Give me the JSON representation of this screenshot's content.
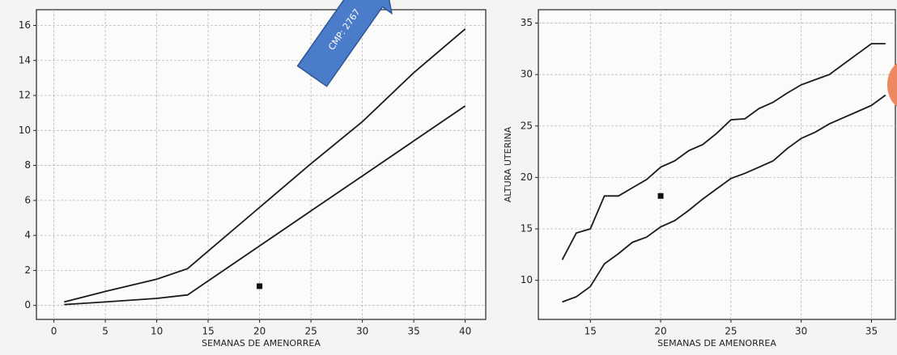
{
  "overlay_text": "CMP: 2767",
  "chart_data": [
    {
      "type": "line",
      "xlabel": "SEMANAS DE AMENORREA",
      "x": [
        1,
        5,
        10,
        13,
        20,
        25,
        30,
        35,
        40
      ],
      "series": [
        {
          "color": "#1a1a1a",
          "values": [
            0.2,
            0.8,
            1.5,
            2.1,
            5.6,
            8.1,
            10.5,
            13.3,
            15.8
          ]
        },
        {
          "color": "#1a1a1a",
          "values": [
            0.05,
            0.2,
            0.4,
            0.6,
            3.4,
            5.4,
            7.4,
            9.4,
            11.4
          ]
        }
      ],
      "markers": {
        "x": [
          20
        ],
        "y": [
          1.1
        ],
        "color": "#111111"
      },
      "xlim": [
        -1.7,
        42
      ],
      "ylim": [
        -0.8,
        16.9
      ],
      "xticks": [
        0,
        5,
        10,
        15,
        20,
        25,
        30,
        35,
        40
      ],
      "yticks": [
        0,
        2,
        4,
        6,
        8,
        10,
        12,
        14,
        16
      ],
      "grid": true
    },
    {
      "type": "line",
      "xlabel": "SEMANAS DE AMENORREA",
      "ylabel": "ALTURA UTERINA",
      "x": [
        13,
        14,
        15,
        16,
        17,
        18,
        19,
        20,
        21,
        22,
        23,
        24,
        25,
        26,
        27,
        28,
        29,
        30,
        31,
        32,
        33,
        34,
        35,
        36
      ],
      "series": [
        {
          "color": "#1a1a1a",
          "values": [
            12,
            14.6,
            15,
            18.2,
            18.2,
            19,
            19.8,
            21,
            21.6,
            22.6,
            23.2,
            24.3,
            25.6,
            25.7,
            26.7,
            27.3,
            28.2,
            29,
            29.5,
            30,
            31,
            32,
            33,
            33
          ]
        },
        {
          "color": "#1a1a1a",
          "values": [
            7.9,
            8.4,
            9.4,
            11.6,
            12.6,
            13.7,
            14.2,
            15.2,
            15.8,
            16.8,
            17.9,
            18.9,
            19.9,
            20.4,
            21,
            21.6,
            22.8,
            23.8,
            24.4,
            25.2,
            25.8,
            26.4,
            27,
            28
          ]
        }
      ],
      "markers": {
        "x": [
          20
        ],
        "y": [
          18.2
        ],
        "color": "#111111"
      },
      "xlim": [
        11.3,
        36.7
      ],
      "ylim": [
        6.2,
        36.3
      ],
      "xticks": [
        15,
        20,
        25,
        30,
        35
      ],
      "yticks": [
        10,
        15,
        20,
        25,
        30,
        35
      ],
      "grid": true
    }
  ]
}
